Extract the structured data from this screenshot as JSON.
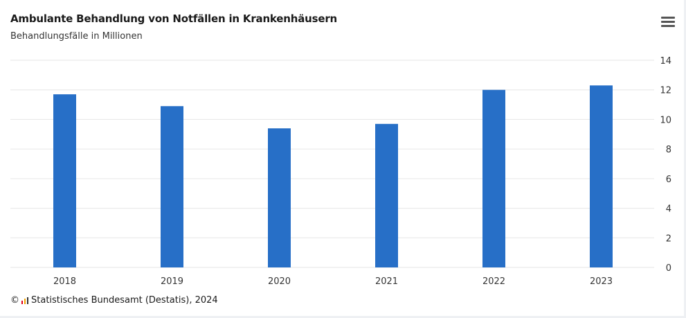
{
  "header": {
    "title": "Ambulante Behandlung von Notfällen in Krankenhäusern",
    "subtitle": "Behandlungsfälle in Millionen"
  },
  "menu": {
    "icon": "hamburger-menu-icon"
  },
  "source": {
    "copyright_symbol": "©",
    "logo_icon": "destatis-logo-icon",
    "text": "Statistisches Bundesamt (Destatis), 2024"
  },
  "colors": {
    "bar": "#276fc7",
    "grid": "#e6e6e6",
    "axis_text": "#333333"
  },
  "chart_data": {
    "type": "bar",
    "title": "Ambulante Behandlung von Notfällen in Krankenhäusern",
    "subtitle": "Behandlungsfälle in Millionen",
    "categories": [
      "2018",
      "2019",
      "2020",
      "2021",
      "2022",
      "2023"
    ],
    "values": [
      11.7,
      10.9,
      9.4,
      9.7,
      12.0,
      12.3
    ],
    "ylim": [
      0,
      14
    ],
    "yticks": [
      "0",
      "2",
      "4",
      "6",
      "8",
      "10",
      "12",
      "14"
    ],
    "y_axis_side": "right",
    "grid": true,
    "legend": "none"
  }
}
